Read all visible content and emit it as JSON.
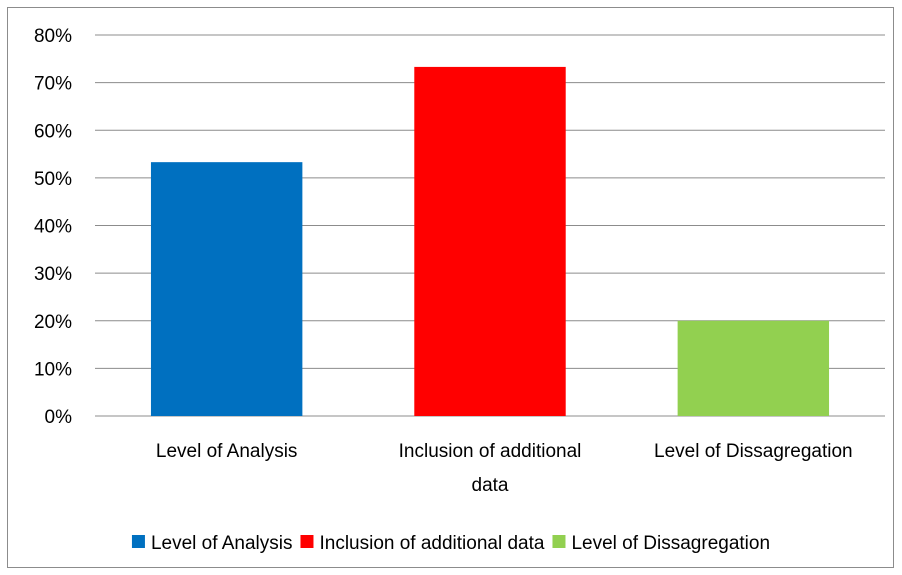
{
  "chart_data": {
    "type": "bar",
    "categories": [
      "Level of Analysis",
      "Inclusion of additional data",
      "Level of Dissagregation"
    ],
    "values": [
      53.3,
      73.3,
      20.0
    ],
    "colors": [
      "#0070C0",
      "#FF0000",
      "#92D050"
    ],
    "ylim": [
      0,
      80
    ],
    "y_ticks": [
      "0%",
      "10%",
      "20%",
      "30%",
      "40%",
      "50%",
      "60%",
      "70%",
      "80%"
    ],
    "grid": true,
    "legend": {
      "position": "bottom",
      "entries": [
        "Level of Analysis",
        "Inclusion of additional data",
        "Level of Dissagregation"
      ]
    }
  }
}
